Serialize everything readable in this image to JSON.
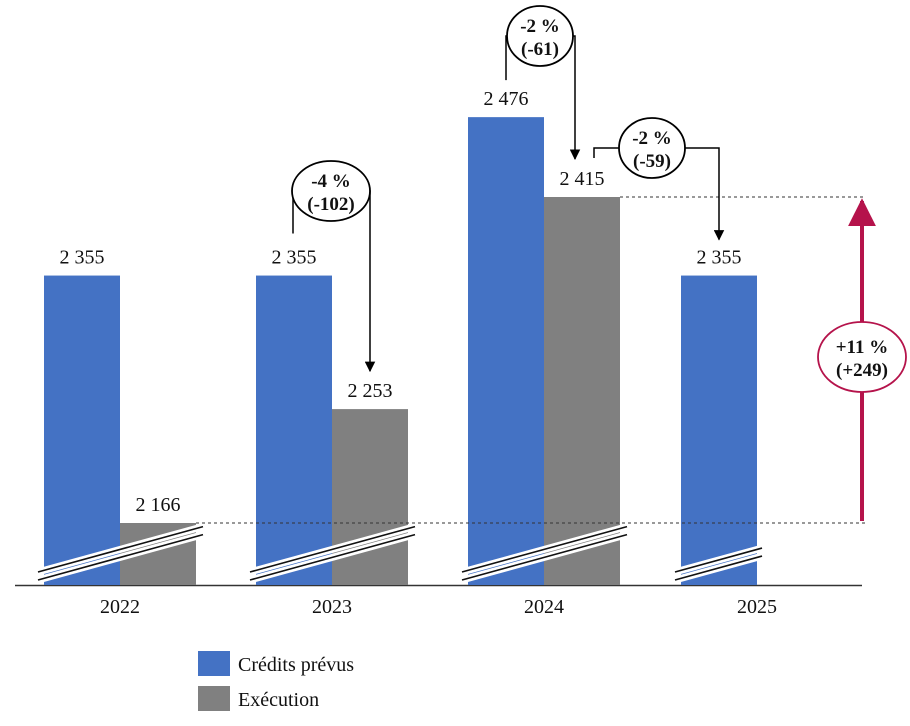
{
  "chart_data": {
    "type": "bar",
    "categories": [
      "2022",
      "2023",
      "2024",
      "2025"
    ],
    "series": [
      {
        "name": "Crédits prévus",
        "color": "#4472C4",
        "values": [
          2355,
          2355,
          2476,
          2355
        ]
      },
      {
        "name": "Exécution",
        "color": "#808080",
        "values": [
          2166,
          2253,
          2415,
          null
        ]
      }
    ],
    "value_labels": {
      "Crédits prévus": [
        "2 355",
        "2 355",
        "2 476",
        "2 355"
      ],
      "Exécution": [
        "2 166",
        "2 253",
        "2 415",
        ""
      ]
    },
    "ylim": [
      2000,
      2500
    ],
    "axis_break": true,
    "grid": false,
    "legend_position": "bottom",
    "reference_lines": [
      2166,
      2415
    ],
    "annotations": [
      {
        "line1": "-4 %",
        "line2": "(-102)",
        "from": "2023 Crédits prévus",
        "to": "2023 Exécution",
        "color": "#000000"
      },
      {
        "line1": "-2 %",
        "line2": "(-61)",
        "from": "2024 Crédits prévus",
        "to": "2024 Exécution",
        "color": "#000000"
      },
      {
        "line1": "-2 %",
        "line2": "(-59)",
        "from": "2024 Exécution",
        "to": "2025 Crédits prévus",
        "color": "#000000"
      },
      {
        "line1": "+11 %",
        "line2": "(+249)",
        "from": "2022 Exécution",
        "to": "2024 Exécution",
        "color": "#B5134B"
      }
    ]
  }
}
